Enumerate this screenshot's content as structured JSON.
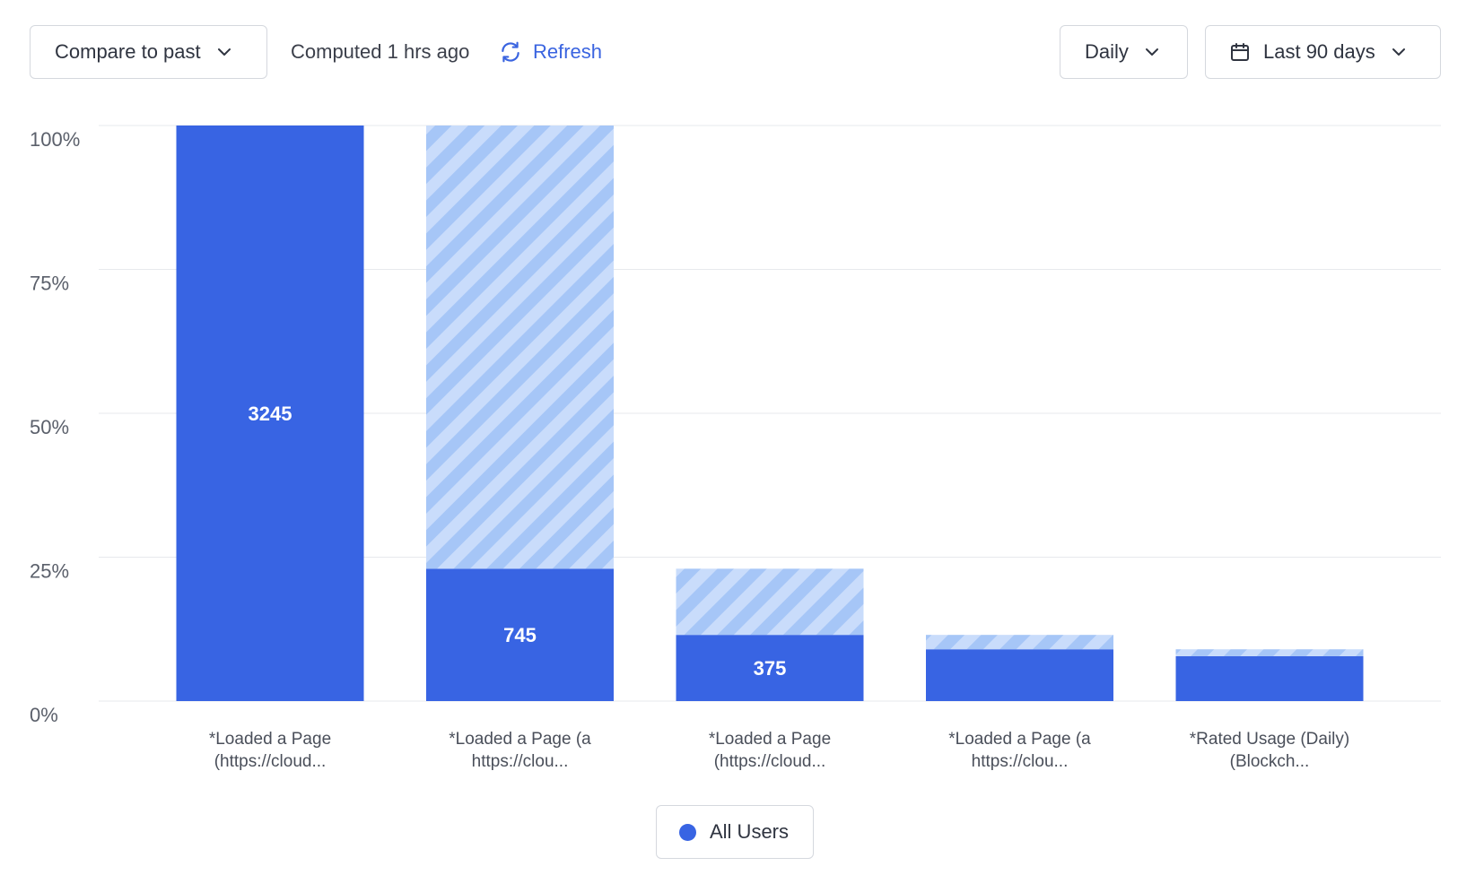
{
  "toolbar": {
    "compare_label": "Compare to past",
    "computed_text": "Computed 1 hrs ago",
    "refresh_label": "Refresh",
    "interval_label": "Daily",
    "range_label": "Last 90 days"
  },
  "colors": {
    "bar": "#3864e3",
    "hatch_light": "#c9dcfb",
    "hatch_dark": "#a6c6f7",
    "accent": "#3a64e0",
    "grid": "#e7e9ed"
  },
  "legend": {
    "items": [
      {
        "label": "All Users",
        "color": "#3864e3"
      }
    ]
  },
  "chart_data": {
    "type": "bar",
    "stacked": true,
    "y_ticks": [
      "100%",
      "75%",
      "50%",
      "25%",
      "0%"
    ],
    "ylim": [
      0,
      100
    ],
    "categories": [
      [
        "*Loaded a Page",
        "(https://cloud..."
      ],
      [
        "*Loaded a Page (a",
        "https://clou..."
      ],
      [
        "*Loaded a Page",
        "(https://cloud..."
      ],
      [
        "*Loaded a Page (a",
        "https://clou..."
      ],
      [
        "*Rated Usage (Daily)",
        "(Blockch..."
      ]
    ],
    "converted_pct": [
      100,
      23,
      11.5,
      9,
      7.8
    ],
    "dropoff_pct": [
      0,
      77,
      11.5,
      2.5,
      1.2
    ],
    "value_labels": [
      "3245",
      "745",
      "375",
      "",
      ""
    ],
    "grid": true,
    "legend_position": "bottom-center"
  }
}
